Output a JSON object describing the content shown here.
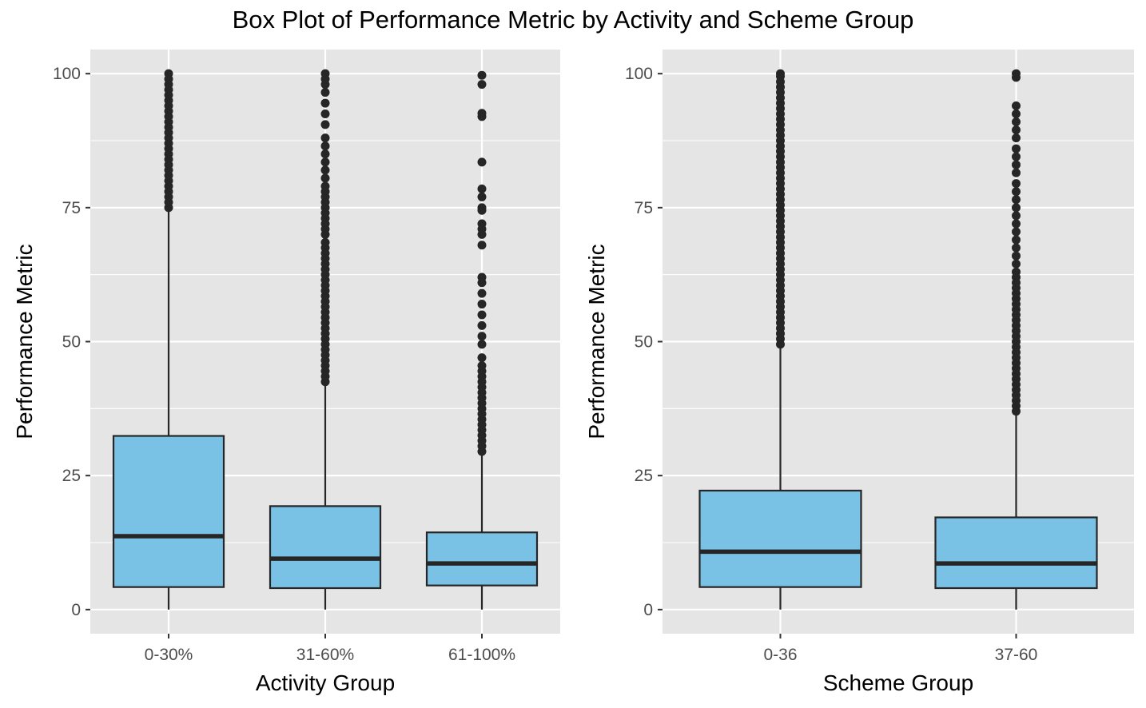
{
  "title": "Box Plot of Performance Metric by Activity and Scheme Group",
  "colors": {
    "panel_background": "#e5e5e5",
    "grid": "#ffffff",
    "box_fill": "#7ac2e5",
    "outline": "#262626",
    "outlier": "#262626",
    "tick_label": "#4d4d4d"
  },
  "chart_data": [
    {
      "type": "box",
      "xlabel": "Activity Group",
      "ylabel": "Performance Metric",
      "ylim": [
        -4.5,
        104.5
      ],
      "yticks": [
        0,
        25,
        50,
        75,
        100
      ],
      "grid": true,
      "categories": [
        "0-30%",
        "31-60%",
        "61-100%"
      ],
      "boxes": [
        {
          "category": "0-30%",
          "lower_whisker": 0,
          "q1": 4.2,
          "median": 13.7,
          "q3": 32.4,
          "upper_whisker": 74.8,
          "outliers": [
            75,
            76,
            77,
            78,
            79,
            80,
            81,
            82,
            83,
            84,
            85,
            86,
            87,
            88,
            89,
            90,
            91,
            92,
            93,
            94,
            95,
            96,
            97,
            98,
            99,
            100
          ]
        },
        {
          "category": "31-60%",
          "lower_whisker": 0,
          "q1": 4.0,
          "median": 9.5,
          "q3": 19.3,
          "upper_whisker": 42.2,
          "outliers": [
            42.5,
            43.5,
            44.5,
            45.5,
            46.5,
            47.5,
            48.5,
            49.5,
            50.5,
            51.5,
            52.5,
            53.5,
            54.5,
            55.5,
            56.5,
            57.5,
            58.5,
            59.5,
            60.5,
            61.5,
            62.5,
            63.5,
            64.5,
            65.5,
            66.5,
            67.5,
            68.5,
            70,
            71,
            72,
            73,
            74,
            75,
            76,
            77,
            78,
            79,
            80.5,
            82,
            83.5,
            85,
            86.5,
            88,
            90.5,
            92.5,
            94.5,
            96.5,
            98,
            99,
            100
          ]
        },
        {
          "category": "61-100%",
          "lower_whisker": 0,
          "q1": 4.5,
          "median": 8.6,
          "q3": 14.4,
          "upper_whisker": 29.2,
          "outliers": [
            29.5,
            30.5,
            31.5,
            32.5,
            33.5,
            34.5,
            35.5,
            36.5,
            37.5,
            38.5,
            39.5,
            40.5,
            41.5,
            42.5,
            43.5,
            44.5,
            45.5,
            47,
            49.5,
            51,
            53,
            55,
            57,
            59,
            61,
            62,
            68,
            70,
            71,
            72,
            74.5,
            75,
            77,
            78.5,
            83.5,
            92,
            92.6,
            98,
            99.7
          ]
        }
      ]
    },
    {
      "type": "box",
      "xlabel": "Scheme Group",
      "ylabel": "Performance Metric",
      "ylim": [
        -4.5,
        104.5
      ],
      "yticks": [
        0,
        25,
        50,
        75,
        100
      ],
      "grid": true,
      "categories": [
        "0-36",
        "37-60"
      ],
      "boxes": [
        {
          "category": "0-36",
          "lower_whisker": 0,
          "q1": 4.2,
          "median": 10.8,
          "q3": 22.2,
          "upper_whisker": 49.2,
          "outliers": [
            49.5,
            50.5,
            51.5,
            52.5,
            53.5,
            54.5,
            55.5,
            56.5,
            57.5,
            58.5,
            59.5,
            60.5,
            61.5,
            62.5,
            63.5,
            64.5,
            65.5,
            66.5,
            67.5,
            68.5,
            69.5,
            70.5,
            71.5,
            72.5,
            73.5,
            74.5,
            75.5,
            76.5,
            77.5,
            78.5,
            79.5,
            80.5,
            81.5,
            82.5,
            83.5,
            84.5,
            85.5,
            86.5,
            87.5,
            88.5,
            89.5,
            90.5,
            91.5,
            92.5,
            93.5,
            94.5,
            95.5,
            96.5,
            97.5,
            98.5,
            99.5,
            100
          ]
        },
        {
          "category": "37-60",
          "lower_whisker": 0,
          "q1": 4.0,
          "median": 8.6,
          "q3": 17.2,
          "upper_whisker": 36.5,
          "outliers": [
            37,
            38,
            39,
            40,
            41,
            42,
            43,
            44,
            45,
            46,
            47,
            48,
            49,
            50,
            51,
            52,
            53,
            54,
            55,
            56,
            57,
            58,
            59,
            60,
            61,
            62,
            63,
            64.5,
            66,
            67.5,
            69,
            70.5,
            72,
            73.5,
            75,
            76.5,
            78,
            79.5,
            81.5,
            83,
            84.5,
            86,
            88,
            89.5,
            91,
            92.5,
            94,
            99.3,
            100
          ]
        }
      ]
    }
  ]
}
